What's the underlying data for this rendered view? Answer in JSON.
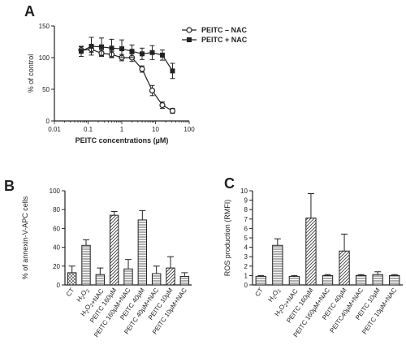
{
  "chart_data": [
    {
      "panel": "A",
      "type": "line",
      "xlabel": "PEITC concentrations (µM)",
      "ylabel": "% of control",
      "xscale": "log",
      "xlim": [
        0.01,
        100
      ],
      "ylim": [
        0,
        150
      ],
      "xticks": [
        "0.01",
        "0.1",
        "1",
        "10",
        "100"
      ],
      "yticks": [
        "0",
        "50",
        "100",
        "150"
      ],
      "legend_position": "top-right",
      "series": [
        {
          "name": "PEITC – NAC",
          "marker": "open-circle",
          "x": [
            0.0625,
            0.125,
            0.25,
            0.5,
            1,
            2,
            4,
            8,
            16,
            32
          ],
          "y": [
            112,
            113,
            107,
            105,
            100,
            100,
            82,
            48,
            25,
            16
          ],
          "err": [
            5,
            5,
            5,
            5,
            5,
            6,
            5,
            8,
            5,
            4
          ]
        },
        {
          "name": "PEITC + NAC",
          "marker": "filled-square",
          "x": [
            0.0625,
            0.125,
            0.25,
            0.5,
            1,
            2,
            4,
            8,
            16,
            32
          ],
          "y": [
            110,
            118,
            117,
            115,
            114,
            110,
            106,
            108,
            104,
            79
          ],
          "err": [
            8,
            14,
            14,
            14,
            14,
            10,
            9,
            11,
            8,
            12
          ]
        }
      ]
    },
    {
      "panel": "B",
      "type": "bar",
      "ylabel": "% of annexin-V-APC cells",
      "ylim": [
        0,
        100
      ],
      "yticks": [
        "0",
        "20",
        "40",
        "60",
        "80",
        "100"
      ],
      "categories": [
        "CT",
        "H2O2",
        "H2O2+NAC",
        "PEITC 160µM",
        "PEITC 160µM+NAC",
        "PEITC 40µM",
        "PEITC 40µM+NAC",
        "PEITC 10µM",
        "PEITC 10µM+NAC"
      ],
      "values": [
        13,
        42,
        11,
        74,
        17,
        69,
        12,
        18,
        9
      ],
      "errors": [
        7,
        6,
        7,
        4,
        10,
        10,
        8,
        12,
        4
      ],
      "patterns": [
        "grid",
        "hstripe",
        "hstripe",
        "diag",
        "hstripe",
        "hstripe",
        "hstripe",
        "diag",
        "hstripe"
      ]
    },
    {
      "panel": "C",
      "type": "bar",
      "ylabel": "ROS production (RMFI)",
      "ylim": [
        0,
        10
      ],
      "yticks": [
        "0",
        "1",
        "2",
        "3",
        "4",
        "5",
        "6",
        "7",
        "8",
        "9",
        "10"
      ],
      "categories": [
        "CT",
        "H2O2",
        "H2O2+NAC",
        "PEITC 160µM",
        "PEITC 160µM+NAC",
        "PEITC 40µM",
        "PEITC40µM+NAC",
        "PEITC 10µM",
        "PEITC 10µM+NAC"
      ],
      "values": [
        0.9,
        4.2,
        0.9,
        7.1,
        1.0,
        3.6,
        1.0,
        1.1,
        1.0
      ],
      "errors": [
        0.1,
        0.7,
        0.1,
        2.6,
        0.1,
        1.8,
        0.1,
        0.3,
        0.1
      ],
      "patterns": [
        "hstripe",
        "hstripe",
        "hstripe",
        "diag",
        "hstripe",
        "diag",
        "hstripe",
        "hstripe",
        "hstripe"
      ]
    }
  ]
}
